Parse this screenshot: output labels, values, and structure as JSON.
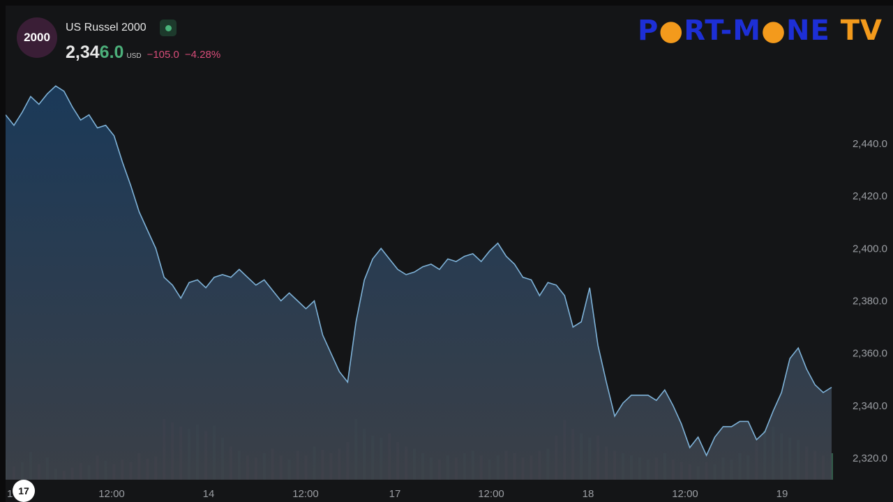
{
  "header": {
    "symbol_badge": "2000",
    "symbol_name": "US Russel 2000",
    "price_main": "2,34",
    "price_tail": "6.0",
    "currency": "USD",
    "change_abs": "−105.0",
    "change_pct": "−4.28%"
  },
  "logo": {
    "part1": "P",
    "part2": "RT-M",
    "part3": "NE",
    "part4": "TV"
  },
  "tv_logo": "17",
  "x_first_label": "1",
  "colors": {
    "line": "#7fb3d9",
    "fill_top": "#1b3b5c",
    "fill_bottom": "#3d424a",
    "vol_up": "#3e7a5f",
    "vol_down": "#8a3f52"
  },
  "chart_data": {
    "type": "area",
    "title": "",
    "xlabel": "",
    "ylabel": "",
    "ylim": [
      2315,
      2465
    ],
    "y_ticks": [
      "2,320.0",
      "2,340.0",
      "2,360.0",
      "2,380.0",
      "2,400.0",
      "2,420.0",
      "2,440.0"
    ],
    "x_ticks": [
      "12:00",
      "14",
      "12:00",
      "17",
      "12:00",
      "18",
      "12:00",
      "19"
    ],
    "x": [
      0,
      3,
      6,
      9,
      12,
      15,
      18,
      21,
      24,
      27,
      30,
      33,
      36,
      39,
      42,
      45,
      48,
      51,
      54,
      57,
      60,
      63,
      66,
      69,
      72,
      75,
      78,
      81,
      84,
      87,
      90,
      93,
      96,
      99,
      102,
      105,
      108,
      111,
      114,
      117,
      120,
      123,
      126,
      129,
      132,
      135,
      138,
      141,
      144,
      147,
      150,
      153,
      156,
      159,
      162,
      165,
      168,
      171,
      174,
      177,
      180,
      183,
      186,
      189,
      192,
      195,
      198,
      201,
      204,
      207,
      210,
      213,
      216,
      219,
      222,
      225,
      228,
      231,
      234,
      237,
      240,
      243,
      246,
      249,
      252,
      255,
      258,
      261,
      264,
      267,
      270,
      273,
      276,
      279,
      282,
      285,
      288,
      291,
      294,
      297
    ],
    "series": [
      {
        "values": [
          2451,
          2447,
          2452,
          2458,
          2455,
          2459,
          2462,
          2460,
          2454,
          2449,
          2451,
          2446,
          2447,
          2443,
          2433,
          2424,
          2414,
          2407,
          2400,
          2389,
          2386,
          2381,
          2387,
          2388,
          2385,
          2389,
          2390,
          2389,
          2392,
          2389,
          2386,
          2388,
          2384,
          2380,
          2383,
          2380,
          2377,
          2380,
          2367,
          2360,
          2353,
          2349,
          2372,
          2388,
          2396,
          2400,
          2396,
          2392,
          2390,
          2391,
          2393,
          2394,
          2392,
          2396,
          2395,
          2397,
          2398,
          2395,
          2399,
          2402,
          2397,
          2394,
          2389,
          2388,
          2382,
          2387,
          2386,
          2382,
          2370,
          2372,
          2385,
          2363,
          2349,
          2336,
          2341,
          2344,
          2344,
          2344,
          2342,
          2346,
          2340,
          2333,
          2324,
          2328,
          2321,
          2328,
          2332,
          2332,
          2334,
          2334,
          2327,
          2330,
          2338,
          2345,
          2358,
          2362,
          2354,
          2348,
          2345,
          2347
        ]
      }
    ],
    "volume": [
      18,
      12,
      16,
      25,
      14,
      20,
      10,
      8,
      11,
      15,
      13,
      22,
      17,
      14,
      18,
      16,
      24,
      19,
      21,
      55,
      52,
      48,
      46,
      50,
      44,
      49,
      38,
      30,
      26,
      22,
      20,
      24,
      28,
      22,
      18,
      26,
      22,
      30,
      27,
      24,
      28,
      34,
      55,
      46,
      40,
      38,
      42,
      34,
      30,
      28,
      24,
      20,
      18,
      22,
      20,
      24,
      26,
      22,
      18,
      22,
      26,
      24,
      20,
      22,
      26,
      28,
      40,
      54,
      46,
      42,
      38,
      40,
      30,
      26,
      24,
      22,
      20,
      18,
      20,
      24,
      18,
      16,
      14,
      12,
      16,
      14,
      20,
      18,
      24,
      22,
      34,
      44,
      48,
      42,
      38,
      36,
      30,
      26,
      22,
      24
    ]
  }
}
